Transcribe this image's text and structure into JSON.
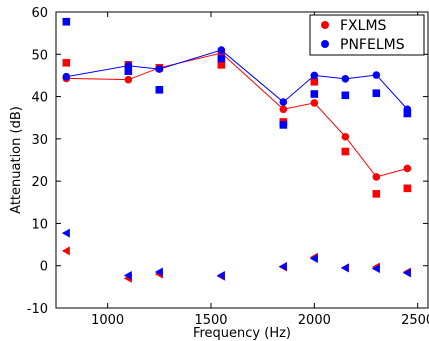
{
  "chart_data": {
    "type": "line",
    "title": "",
    "xlabel": "Frequency (Hz)",
    "ylabel": "Attenuation (dB)",
    "xlim": [
      750,
      2550
    ],
    "ylim": [
      -10,
      60
    ],
    "xticks": [
      1000,
      1500,
      2000,
      2500
    ],
    "yticks": [
      -10,
      0,
      10,
      20,
      30,
      40,
      50,
      60
    ],
    "grid": false,
    "legend_position": "top-right",
    "series": [
      {
        "name": "FXLMS",
        "color": "#ff0000",
        "x": [
          800,
          1100,
          1250,
          1550,
          1850,
          2000,
          2150,
          2300,
          2450
        ],
        "line": [
          44.3,
          44.0,
          46.8,
          50.3,
          37.0,
          38.5,
          30.5,
          21.0,
          23.0
        ],
        "squares": [
          48.0,
          47.5,
          46.8,
          47.5,
          34.0,
          43.5,
          27.0,
          17.0,
          18.3
        ],
        "triangles": [
          3.5,
          -3.0,
          -2.0,
          -2.5,
          -0.3,
          2.0,
          -0.5,
          -0.3,
          -1.5
        ]
      },
      {
        "name": "PNFELMS",
        "color": "#0000ff",
        "x": [
          800,
          1100,
          1250,
          1550,
          1850,
          2000,
          2150,
          2300,
          2450
        ],
        "line": [
          44.7,
          47.3,
          46.5,
          51.0,
          38.7,
          45.0,
          44.2,
          45.1,
          37.0
        ],
        "squares": [
          57.7,
          46.0,
          41.6,
          49.0,
          33.3,
          40.6,
          40.3,
          40.8,
          36.0
        ],
        "triangles": [
          7.7,
          -2.3,
          -1.5,
          -2.3,
          -0.2,
          1.7,
          -0.5,
          -0.7,
          -1.7
        ]
      }
    ]
  }
}
